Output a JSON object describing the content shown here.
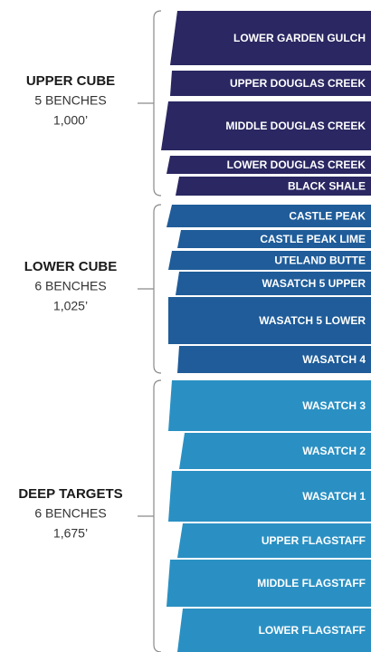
{
  "groups": [
    {
      "title": "UPPER CUBE",
      "benches": "5 BENCHES",
      "thickness": "1,000’",
      "bands": [
        "LOWER GARDEN GULCH",
        "UPPER DOUGLAS CREEK",
        "MIDDLE DOUGLAS CREEK",
        "LOWER DOUGLAS CREEK",
        "BLACK SHALE"
      ]
    },
    {
      "title": "LOWER CUBE",
      "benches": "6 BENCHES",
      "thickness": "1,025’",
      "bands": [
        "CASTLE PEAK",
        "CASTLE PEAK LIME",
        "UTELAND BUTTE",
        "WASATCH 5 UPPER",
        "WASATCH 5 LOWER",
        "WASATCH 4"
      ]
    },
    {
      "title": "DEEP TARGETS",
      "benches": "6 BENCHES",
      "thickness": "1,675’",
      "bands": [
        "WASATCH 3",
        "WASATCH 2",
        "WASATCH 1",
        "UPPER FLAGSTAFF",
        "MIDDLE FLAGSTAFF",
        "LOWER FLAGSTAFF"
      ]
    }
  ]
}
